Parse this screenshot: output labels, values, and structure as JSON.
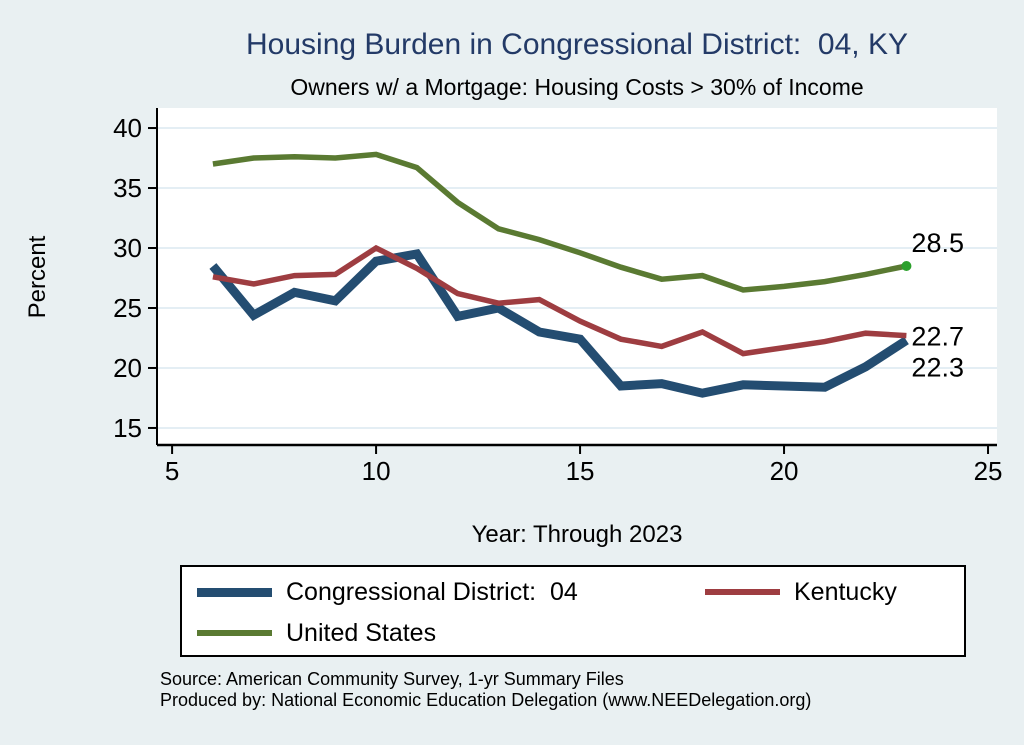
{
  "title": "Housing Burden in Congressional District:  04, KY",
  "subtitle": "Owners w/ a Mortgage: Housing Costs > 30% of Income",
  "colors": {
    "page_background": "#e9f0f2",
    "plot_background": "#ffffff",
    "gridline": "#dce8f0",
    "axis": "#000000",
    "title_navy": "#233a67",
    "district_blue": "#244d71",
    "kentucky_red": "#9e3d41",
    "us_green": "#5a7a32",
    "end_dot_green": "#2ca02c"
  },
  "chart_data": {
    "type": "line",
    "x": [
      6,
      7,
      8,
      9,
      10,
      11,
      12,
      13,
      14,
      15,
      16,
      17,
      18,
      19,
      20,
      21,
      22,
      23
    ],
    "series": [
      {
        "name": "Congressional District:  04",
        "color": "#244d71",
        "width": 9,
        "values": [
          28.5,
          24.4,
          26.3,
          25.6,
          28.9,
          29.5,
          24.3,
          25.0,
          23.0,
          22.4,
          18.5,
          18.7,
          17.9,
          18.6,
          18.5,
          18.4,
          20.1,
          22.3
        ]
      },
      {
        "name": "Kentucky",
        "color": "#9e3d41",
        "width": 5.5,
        "values": [
          27.6,
          27.0,
          27.7,
          27.8,
          30.0,
          28.3,
          26.2,
          25.4,
          25.7,
          23.9,
          22.4,
          21.8,
          23.0,
          21.2,
          21.7,
          22.2,
          22.9,
          22.7
        ]
      },
      {
        "name": "United States",
        "color": "#5a7a32",
        "width": 5.5,
        "values": [
          37.0,
          37.5,
          37.6,
          37.5,
          37.8,
          36.7,
          33.8,
          31.6,
          30.7,
          29.6,
          28.4,
          27.4,
          27.7,
          26.5,
          26.8,
          27.2,
          27.8,
          28.5
        ]
      }
    ],
    "end_labels": [
      {
        "text": "28.5",
        "value": 28.5,
        "dy": -23
      },
      {
        "text": "22.7",
        "value": 22.7,
        "dy": 1
      },
      {
        "text": "22.3",
        "value": 22.3,
        "dy": 27
      }
    ],
    "end_dot": {
      "x": 23,
      "value": 28.5,
      "color": "#2ca02c",
      "r": 5
    },
    "title": "Housing Burden in Congressional District:  04, KY",
    "subtitle": "Owners w/ a Mortgage: Housing Costs > 30% of Income",
    "xlabel": "Year: Through 2023",
    "ylabel": "Percent",
    "x_ticks": [
      5,
      10,
      15,
      20,
      25
    ],
    "y_ticks": [
      15,
      20,
      25,
      30,
      35,
      40
    ],
    "xlim": [
      4.63,
      25.22
    ],
    "ylim": [
      13.58,
      41.67
    ],
    "grid": true,
    "legend_position": "bottom"
  },
  "legend": {
    "items": [
      {
        "label": "Congressional District:  04",
        "color": "#244d71",
        "thickness": 9
      },
      {
        "label": "Kentucky",
        "color": "#9e3d41",
        "thickness": 6
      },
      {
        "label": "United States",
        "color": "#5a7a32",
        "thickness": 6
      }
    ]
  },
  "footer": {
    "line1": "Source: American Community Survey, 1-yr Summary Files",
    "line2": "Produced by: National Economic Education Delegation (www.NEEDelegation.org)"
  }
}
